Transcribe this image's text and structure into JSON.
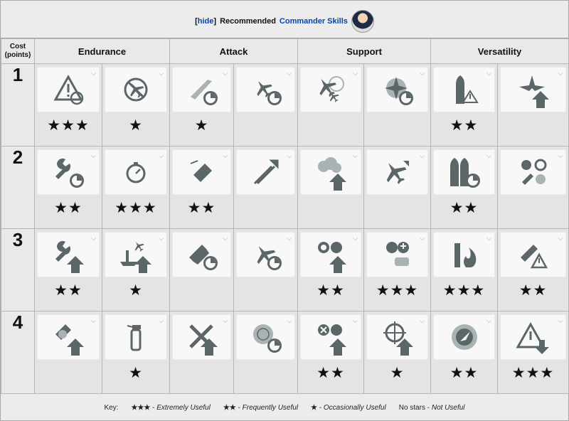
{
  "header": {
    "toggle": "hide",
    "label": "Recommended",
    "link": "Commander Skills"
  },
  "cost_header": {
    "line1": "Cost",
    "line2": "(points)"
  },
  "categories": [
    "Endurance",
    "Attack",
    "Support",
    "Versatility"
  ],
  "rows": [
    {
      "cost": "1",
      "stars": [
        "★★★",
        "★",
        "★",
        "",
        "",
        "",
        "★★",
        ""
      ],
      "icons": [
        "warning-icon",
        "no-aircraft-icon",
        "torpedo-icon",
        "aircraft-strike-icon",
        "fighter-icon",
        "propeller-icon",
        "torpedo-warning-icon",
        "propeller-upgrade-icon"
      ]
    },
    {
      "cost": "2",
      "stars": [
        "★★",
        "★★★",
        "★★",
        "",
        "",
        "",
        "★★",
        ""
      ],
      "icons": [
        "wrench-icon",
        "stopwatch-icon",
        "gatling-icon",
        "rocket-icon",
        "smoke-upgrade-icon",
        "aircraft-upgrade-icon",
        "torpedo-pair-icon",
        "ordnance-wheel-icon"
      ]
    },
    {
      "cost": "3",
      "stars": [
        "★★",
        "★",
        "",
        "",
        "★★",
        "★★★",
        "★★★",
        "★★"
      ],
      "icons": [
        "wrench-upgrade-icon",
        "carrier-upgrade-icon",
        "rocket-pair-icon",
        "aircraft-dive-icon",
        "consumable-upgrade-icon",
        "consumable-tags-icon",
        "fire-icon",
        "rocket-warning-icon"
      ]
    },
    {
      "cost": "4",
      "stars": [
        "",
        "★",
        "",
        "",
        "★★",
        "★",
        "★★",
        "★★★"
      ],
      "icons": [
        "armor-upgrade-icon",
        "extinguisher-icon",
        "crossed-upgrade-icon",
        "target-radar-icon",
        "repair-upgrade-icon",
        "crosshair-upgrade-icon",
        "radar-icon",
        "warning-down-icon"
      ]
    }
  ],
  "key": {
    "prefix": "Key:",
    "items": [
      {
        "stars": "★★★",
        "sep": " - ",
        "desc": "Extremely Useful"
      },
      {
        "stars": "★★",
        "sep": " - ",
        "desc": "Frequently Useful"
      },
      {
        "stars": "★",
        "sep": " - ",
        "desc": "Occasionally Useful"
      },
      {
        "stars": "No stars",
        "sep": " - ",
        "desc": "Not Useful"
      }
    ]
  },
  "colors": {
    "icon": "#5b6668",
    "icon_light": "#aab3b4",
    "link": "#0645ad"
  }
}
